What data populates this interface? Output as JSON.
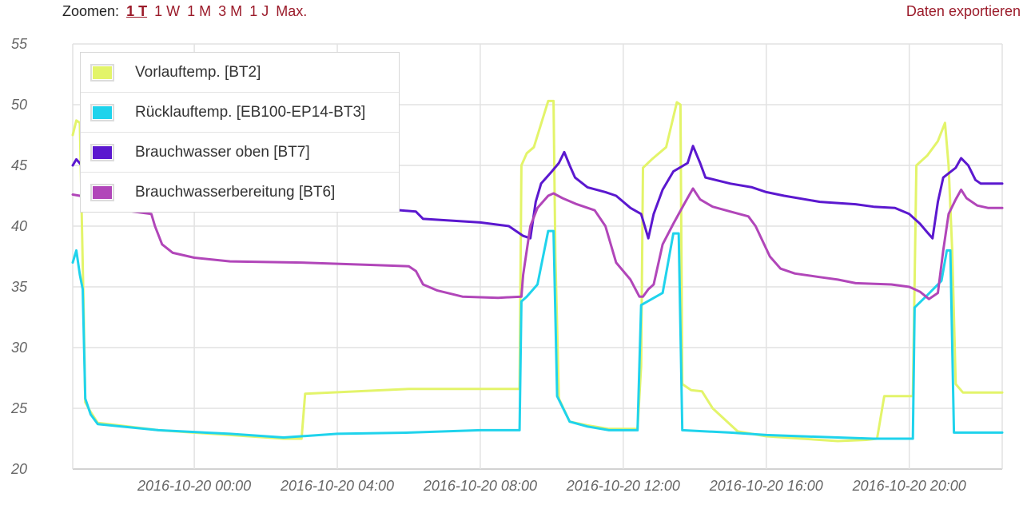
{
  "toolbar": {
    "zoom_label": "Zoomen:",
    "zoom_options": [
      "1 T",
      "1 W",
      "1 M",
      "3 M",
      "1 J",
      "Max."
    ],
    "active_zoom": "1 T",
    "export_label": "Daten exportieren"
  },
  "chart_data": {
    "type": "line",
    "ylim": [
      20,
      55
    ],
    "y_ticks": [
      "20",
      "25",
      "30",
      "35",
      "40",
      "45",
      "50",
      "55"
    ],
    "x_ticks": [
      "2016-10-20 00:00",
      "2016-10-20 04:00",
      "2016-10-20 08:00",
      "2016-10-20 12:00",
      "2016-10-20 16:00",
      "2016-10-20 20:00"
    ],
    "x_tick_hours": [
      0,
      4,
      8,
      12,
      16,
      20
    ],
    "xlim_hours": [
      -3.4,
      22.6
    ],
    "grid": true,
    "legend_position": "top-left",
    "series": [
      {
        "name": "Vorlauftemp. [BT2]",
        "color": "#e3f46a",
        "points": [
          [
            -3.4,
            47.5
          ],
          [
            -3.3,
            48.7
          ],
          [
            -3.2,
            48.5
          ],
          [
            -3.1,
            34
          ],
          [
            -3.05,
            25.5
          ],
          [
            -2.9,
            24.7
          ],
          [
            -2.7,
            23.8
          ],
          [
            -1,
            23.2
          ],
          [
            1,
            22.8
          ],
          [
            2.5,
            22.5
          ],
          [
            3,
            22.5
          ],
          [
            3.1,
            26.2
          ],
          [
            6,
            26.6
          ],
          [
            8,
            26.6
          ],
          [
            9.1,
            26.6
          ],
          [
            9.15,
            45
          ],
          [
            9.3,
            46
          ],
          [
            9.5,
            46.5
          ],
          [
            9.9,
            50.3
          ],
          [
            10.05,
            50.3
          ],
          [
            10.1,
            37.5
          ],
          [
            10.2,
            25.8
          ],
          [
            10.5,
            23.9
          ],
          [
            11,
            23.6
          ],
          [
            11.6,
            23.3
          ],
          [
            12.2,
            23.3
          ],
          [
            12.4,
            23.3
          ],
          [
            12.5,
            28.5
          ],
          [
            12.55,
            44.8
          ],
          [
            12.8,
            45.5
          ],
          [
            13.2,
            46.5
          ],
          [
            13.5,
            50.2
          ],
          [
            13.6,
            50
          ],
          [
            13.65,
            27
          ],
          [
            13.9,
            26.5
          ],
          [
            14.2,
            26.4
          ],
          [
            14.5,
            25
          ],
          [
            15.2,
            23.1
          ],
          [
            16,
            22.7
          ],
          [
            17,
            22.5
          ],
          [
            18,
            22.3
          ],
          [
            18.8,
            22.4
          ],
          [
            19.1,
            22.5
          ],
          [
            19.3,
            26
          ],
          [
            20,
            26
          ],
          [
            20.1,
            26
          ],
          [
            20.2,
            45
          ],
          [
            20.5,
            45.8
          ],
          [
            20.8,
            47
          ],
          [
            21,
            48.5
          ],
          [
            21.1,
            45
          ],
          [
            21.2,
            38
          ],
          [
            21.3,
            27
          ],
          [
            21.5,
            26.3
          ],
          [
            22.6,
            26.3
          ]
        ]
      },
      {
        "name": "Rücklauftemp. [EB100-EP14-BT3]",
        "color": "#1fd3ec",
        "points": [
          [
            -3.4,
            37
          ],
          [
            -3.3,
            38
          ],
          [
            -3.2,
            36
          ],
          [
            -3.12,
            34.8
          ],
          [
            -3.05,
            25.8
          ],
          [
            -2.9,
            24.5
          ],
          [
            -2.7,
            23.7
          ],
          [
            -1,
            23.2
          ],
          [
            1,
            22.9
          ],
          [
            2.5,
            22.6
          ],
          [
            4,
            22.9
          ],
          [
            6,
            23
          ],
          [
            8,
            23.2
          ],
          [
            9.1,
            23.2
          ],
          [
            9.15,
            33.8
          ],
          [
            9.3,
            34.2
          ],
          [
            9.6,
            35.2
          ],
          [
            9.9,
            39.6
          ],
          [
            10.05,
            39.6
          ],
          [
            10.15,
            26
          ],
          [
            10.5,
            23.9
          ],
          [
            11,
            23.5
          ],
          [
            11.6,
            23.2
          ],
          [
            12.4,
            23.2
          ],
          [
            12.5,
            33.5
          ],
          [
            12.8,
            34
          ],
          [
            13.1,
            34.5
          ],
          [
            13.4,
            39.4
          ],
          [
            13.55,
            39.4
          ],
          [
            13.65,
            23.2
          ],
          [
            15,
            23
          ],
          [
            16,
            22.8
          ],
          [
            17,
            22.7
          ],
          [
            18,
            22.6
          ],
          [
            19,
            22.5
          ],
          [
            20,
            22.5
          ],
          [
            20.1,
            22.5
          ],
          [
            20.15,
            33.3
          ],
          [
            20.5,
            34.3
          ],
          [
            20.9,
            35.5
          ],
          [
            21.05,
            38
          ],
          [
            21.15,
            38
          ],
          [
            21.25,
            23
          ],
          [
            22.6,
            23
          ]
        ]
      },
      {
        "name": "Brauchwasser oben [BT7]",
        "color": "#5b18cf",
        "points": [
          [
            -3.4,
            45
          ],
          [
            -3.3,
            45.5
          ],
          [
            -3.15,
            45
          ],
          [
            -3.1,
            44
          ],
          [
            2,
            42.5
          ],
          [
            5,
            41.5
          ],
          [
            6.2,
            41.2
          ],
          [
            6.4,
            40.6
          ],
          [
            8,
            40.3
          ],
          [
            8.8,
            40
          ],
          [
            9.2,
            39.2
          ],
          [
            9.4,
            39
          ],
          [
            9.55,
            42
          ],
          [
            9.7,
            43.5
          ],
          [
            10,
            44.5
          ],
          [
            10.2,
            45.2
          ],
          [
            10.35,
            46.1
          ],
          [
            10.5,
            45
          ],
          [
            10.65,
            44
          ],
          [
            11,
            43.2
          ],
          [
            11.5,
            42.8
          ],
          [
            11.8,
            42.5
          ],
          [
            12,
            42
          ],
          [
            12.2,
            41.5
          ],
          [
            12.5,
            41
          ],
          [
            12.6,
            40
          ],
          [
            12.7,
            39
          ],
          [
            12.85,
            41
          ],
          [
            13.1,
            43
          ],
          [
            13.4,
            44.5
          ],
          [
            13.8,
            45.2
          ],
          [
            13.95,
            46.6
          ],
          [
            14.15,
            45.2
          ],
          [
            14.3,
            44
          ],
          [
            15,
            43.5
          ],
          [
            15.6,
            43.2
          ],
          [
            16,
            42.8
          ],
          [
            16.5,
            42.5
          ],
          [
            17.5,
            42
          ],
          [
            18.5,
            41.8
          ],
          [
            19,
            41.6
          ],
          [
            19.6,
            41.5
          ],
          [
            20,
            41
          ],
          [
            20.3,
            40.2
          ],
          [
            20.5,
            39.5
          ],
          [
            20.65,
            39
          ],
          [
            20.8,
            42
          ],
          [
            20.95,
            44
          ],
          [
            21.3,
            44.8
          ],
          [
            21.45,
            45.6
          ],
          [
            21.65,
            45
          ],
          [
            21.85,
            43.8
          ],
          [
            22,
            43.5
          ],
          [
            22.6,
            43.5
          ]
        ]
      },
      {
        "name": "Brauchwasserbereitung [BT6]",
        "color": "#b146b9",
        "points": [
          [
            -3.4,
            42.6
          ],
          [
            -3.2,
            42.5
          ],
          [
            -2.5,
            41.5
          ],
          [
            -1.2,
            41
          ],
          [
            -1.1,
            40
          ],
          [
            -0.9,
            38.5
          ],
          [
            -0.6,
            37.8
          ],
          [
            0,
            37.4
          ],
          [
            1,
            37.1
          ],
          [
            3,
            37
          ],
          [
            5,
            36.8
          ],
          [
            6,
            36.7
          ],
          [
            6.2,
            36.3
          ],
          [
            6.4,
            35.2
          ],
          [
            6.8,
            34.7
          ],
          [
            7.5,
            34.2
          ],
          [
            8.5,
            34.1
          ],
          [
            9.15,
            34.2
          ],
          [
            9.2,
            36
          ],
          [
            9.4,
            40
          ],
          [
            9.6,
            41.5
          ],
          [
            9.9,
            42.5
          ],
          [
            10.05,
            42.7
          ],
          [
            10.3,
            42.3
          ],
          [
            10.7,
            41.8
          ],
          [
            11.2,
            41.3
          ],
          [
            11.5,
            40
          ],
          [
            11.8,
            37
          ],
          [
            12.2,
            35.6
          ],
          [
            12.45,
            34.2
          ],
          [
            12.55,
            34.2
          ],
          [
            12.7,
            34.8
          ],
          [
            12.85,
            35.2
          ],
          [
            13.1,
            38.5
          ],
          [
            13.4,
            40.2
          ],
          [
            13.7,
            41.8
          ],
          [
            13.95,
            43.1
          ],
          [
            14.15,
            42.2
          ],
          [
            14.5,
            41.6
          ],
          [
            15,
            41.2
          ],
          [
            15.5,
            40.8
          ],
          [
            15.7,
            40
          ],
          [
            16.1,
            37.5
          ],
          [
            16.4,
            36.5
          ],
          [
            16.8,
            36.1
          ],
          [
            17.5,
            35.8
          ],
          [
            18,
            35.6
          ],
          [
            18.5,
            35.3
          ],
          [
            19.5,
            35.2
          ],
          [
            20,
            35
          ],
          [
            20.3,
            34.6
          ],
          [
            20.55,
            34
          ],
          [
            20.8,
            34.5
          ],
          [
            20.95,
            38
          ],
          [
            21.1,
            41
          ],
          [
            21.3,
            42.2
          ],
          [
            21.45,
            43
          ],
          [
            21.6,
            42.3
          ],
          [
            21.9,
            41.7
          ],
          [
            22.2,
            41.5
          ],
          [
            22.6,
            41.5
          ]
        ]
      }
    ]
  }
}
